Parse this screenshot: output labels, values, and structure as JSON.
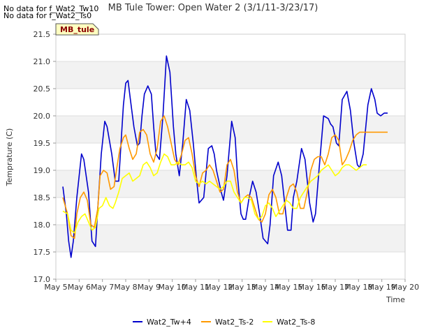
{
  "notices": [
    "No data for f_Wat2_Tw10",
    "No data for f_Wat2_Ts0"
  ],
  "badge": "MB_tule",
  "chart_data": {
    "type": "line",
    "title": "MB Tule Tower: Open Water 2 (3/1/11-3/23/17)",
    "xlabel": "Time",
    "ylabel": "Temprature (C)",
    "xlim": [
      5,
      20
    ],
    "ylim": [
      17.0,
      21.5
    ],
    "x_ticks": [
      5,
      6,
      7,
      8,
      9,
      10,
      11,
      12,
      13,
      14,
      15,
      16,
      17,
      18,
      19,
      20
    ],
    "x_tick_labels": [
      "May 5",
      "May 6",
      "May 7",
      "May 8",
      "May 9",
      "May 10",
      "May 11",
      "May 12",
      "May 13",
      "May 14",
      "May 15",
      "May 16",
      "May 17",
      "May 18",
      "May 19",
      "May 20"
    ],
    "y_ticks": [
      17.0,
      17.5,
      18.0,
      18.5,
      19.0,
      19.5,
      20.0,
      20.5,
      21.0,
      21.5
    ],
    "y_tick_labels": [
      "17.0",
      "17.5",
      "18.0",
      "18.5",
      "19.0",
      "19.5",
      "20.0",
      "20.5",
      "21.0",
      "21.5"
    ],
    "series": [
      {
        "name": "Wat2_Tw+4",
        "color": "#0000cc",
        "x": [
          5.3,
          5.45,
          5.55,
          5.65,
          5.75,
          5.9,
          6.1,
          6.2,
          6.4,
          6.55,
          6.7,
          6.8,
          6.95,
          7.1,
          7.2,
          7.4,
          7.55,
          7.7,
          7.8,
          7.9,
          8.0,
          8.1,
          8.2,
          8.35,
          8.5,
          8.6,
          8.7,
          8.8,
          8.95,
          9.1,
          9.2,
          9.3,
          9.45,
          9.6,
          9.75,
          9.9,
          10.05,
          10.15,
          10.3,
          10.45,
          10.6,
          10.75,
          10.9,
          11.05,
          11.15,
          11.35,
          11.55,
          11.7,
          11.8,
          11.9,
          12.1,
          12.2,
          12.35,
          12.55,
          12.7,
          12.8,
          12.95,
          13.05,
          13.15,
          13.3,
          13.45,
          13.6,
          13.75,
          13.9,
          14.1,
          14.2,
          14.35,
          14.55,
          14.7,
          14.8,
          14.95,
          15.1,
          15.2,
          15.35,
          15.55,
          15.7,
          15.8,
          15.9,
          16.05,
          16.15,
          16.3,
          16.5,
          16.7,
          16.8,
          16.9,
          17.05,
          17.15,
          17.3,
          17.5,
          17.65,
          17.8,
          17.95,
          18.05,
          18.2,
          18.4,
          18.55,
          18.7,
          18.8,
          18.95,
          19.1,
          19.25
        ],
        "y": [
          18.7,
          18.2,
          17.7,
          17.4,
          17.7,
          18.5,
          19.3,
          19.2,
          18.6,
          17.7,
          17.6,
          18.3,
          19.3,
          19.9,
          19.8,
          19.3,
          18.8,
          18.8,
          19.5,
          20.2,
          20.6,
          20.65,
          20.3,
          19.8,
          19.45,
          19.5,
          20.0,
          20.4,
          20.55,
          20.4,
          19.8,
          19.3,
          19.2,
          20.0,
          21.1,
          20.8,
          19.8,
          19.3,
          18.9,
          19.5,
          20.3,
          20.1,
          19.5,
          18.8,
          18.4,
          18.5,
          19.4,
          19.45,
          19.3,
          19.0,
          18.6,
          18.45,
          18.9,
          19.9,
          19.6,
          18.9,
          18.2,
          18.1,
          18.1,
          18.5,
          18.8,
          18.6,
          18.2,
          17.75,
          17.65,
          18.0,
          18.9,
          19.15,
          18.9,
          18.5,
          17.9,
          17.9,
          18.5,
          18.8,
          19.4,
          19.2,
          18.8,
          18.4,
          18.05,
          18.2,
          19.0,
          20.0,
          19.95,
          19.85,
          19.8,
          19.5,
          19.45,
          20.3,
          20.45,
          20.1,
          19.5,
          19.1,
          19.05,
          19.3,
          20.2,
          20.5,
          20.3,
          20.05,
          20.0,
          20.05,
          20.05
        ]
      },
      {
        "name": "Wat2_Ts-2",
        "color": "#ff9900",
        "x": [
          5.3,
          5.5,
          5.65,
          5.8,
          5.9,
          6.05,
          6.2,
          6.35,
          6.5,
          6.65,
          6.8,
          6.9,
          7.05,
          7.2,
          7.35,
          7.5,
          7.6,
          7.75,
          7.9,
          8.0,
          8.15,
          8.3,
          8.45,
          8.6,
          8.75,
          8.9,
          9.05,
          9.2,
          9.35,
          9.5,
          9.65,
          9.8,
          9.95,
          10.1,
          10.25,
          10.4,
          10.55,
          10.7,
          10.85,
          11.0,
          11.15,
          11.3,
          11.45,
          11.6,
          11.75,
          11.9,
          12.05,
          12.2,
          12.35,
          12.5,
          12.65,
          12.8,
          12.95,
          13.1,
          13.25,
          13.4,
          13.55,
          13.7,
          13.85,
          14.0,
          14.15,
          14.3,
          14.45,
          14.6,
          14.75,
          14.9,
          15.05,
          15.2,
          15.35,
          15.5,
          15.65,
          15.8,
          15.95,
          16.1,
          16.25,
          16.4,
          16.55,
          16.7,
          16.85,
          17.0,
          17.15,
          17.3,
          17.45,
          17.6,
          17.75,
          17.9,
          18.05,
          18.2,
          18.35,
          18.5,
          18.65,
          18.8,
          18.95,
          19.1,
          19.25
        ],
        "y": [
          18.5,
          18.2,
          17.8,
          17.75,
          18.2,
          18.5,
          18.6,
          18.45,
          18.0,
          17.95,
          18.3,
          18.9,
          19.0,
          18.95,
          18.65,
          18.7,
          19.0,
          19.4,
          19.6,
          19.65,
          19.4,
          19.2,
          19.3,
          19.7,
          19.75,
          19.65,
          19.3,
          19.15,
          19.4,
          19.9,
          20.0,
          19.8,
          19.5,
          19.2,
          19.1,
          19.3,
          19.55,
          19.6,
          19.3,
          18.9,
          18.7,
          18.95,
          19.0,
          19.1,
          19.0,
          18.8,
          18.6,
          18.65,
          19.1,
          19.2,
          19.0,
          18.6,
          18.4,
          18.5,
          18.55,
          18.5,
          18.3,
          18.1,
          18.05,
          18.2,
          18.55,
          18.65,
          18.5,
          18.2,
          18.2,
          18.5,
          18.7,
          18.75,
          18.6,
          18.3,
          18.3,
          18.6,
          19.0,
          19.2,
          19.25,
          19.25,
          19.1,
          19.3,
          19.6,
          19.65,
          19.55,
          19.1,
          19.2,
          19.35,
          19.55,
          19.65,
          19.7,
          19.7,
          19.7,
          19.7,
          19.7,
          19.7,
          19.7,
          19.7,
          19.7
        ]
      },
      {
        "name": "Wat2_Ts-8",
        "color": "#ffff00",
        "x": [
          5.3,
          5.5,
          5.65,
          5.8,
          5.95,
          6.1,
          6.25,
          6.4,
          6.55,
          6.7,
          6.85,
          7.0,
          7.15,
          7.3,
          7.45,
          7.55,
          7.7,
          7.85,
          8.0,
          8.15,
          8.3,
          8.45,
          8.6,
          8.75,
          8.9,
          9.05,
          9.2,
          9.35,
          9.5,
          9.65,
          9.8,
          9.95,
          10.1,
          10.25,
          10.4,
          10.55,
          10.7,
          10.85,
          11.0,
          11.15,
          11.3,
          11.45,
          11.6,
          11.75,
          11.9,
          12.05,
          12.2,
          12.35,
          12.5,
          12.65,
          12.8,
          12.95,
          13.1,
          13.25,
          13.4,
          13.55,
          13.7,
          13.85,
          14.0,
          14.15,
          14.3,
          14.45,
          14.6,
          14.75,
          14.9,
          15.05,
          15.2,
          15.35,
          15.5,
          15.65,
          15.8,
          15.95,
          16.1,
          16.25,
          16.4,
          16.55,
          16.7,
          16.85,
          17.0,
          17.15,
          17.3,
          17.45,
          17.6,
          17.75,
          17.9,
          18.05,
          18.2,
          18.35
        ],
        "y": [
          18.25,
          18.2,
          17.9,
          17.85,
          18.05,
          18.15,
          18.2,
          18.05,
          17.9,
          17.95,
          18.3,
          18.35,
          18.5,
          18.35,
          18.3,
          18.4,
          18.6,
          18.85,
          18.9,
          18.95,
          18.8,
          18.85,
          18.9,
          19.1,
          19.15,
          19.05,
          18.9,
          18.95,
          19.15,
          19.3,
          19.25,
          19.1,
          19.1,
          19.15,
          19.1,
          19.1,
          19.15,
          19.05,
          18.8,
          18.75,
          18.8,
          18.75,
          18.8,
          18.75,
          18.7,
          18.65,
          18.7,
          18.8,
          18.8,
          18.6,
          18.5,
          18.4,
          18.5,
          18.5,
          18.45,
          18.2,
          18.1,
          18.15,
          18.35,
          18.4,
          18.3,
          18.15,
          18.25,
          18.35,
          18.45,
          18.4,
          18.3,
          18.3,
          18.5,
          18.6,
          18.7,
          18.8,
          18.85,
          18.9,
          19.0,
          19.05,
          19.1,
          19.0,
          18.9,
          18.95,
          19.05,
          19.1,
          19.1,
          19.05,
          19.0,
          19.05,
          19.1,
          19.1
        ]
      }
    ]
  }
}
